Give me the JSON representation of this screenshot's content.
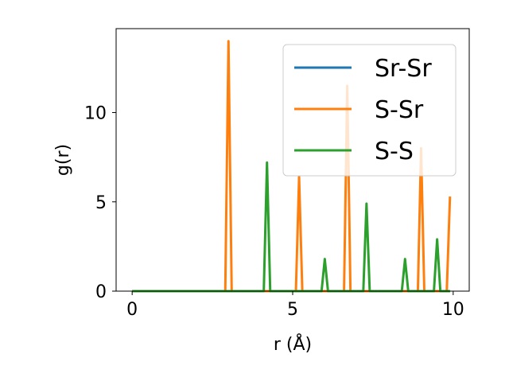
{
  "chart_data": {
    "type": "line",
    "title": "",
    "xlabel": "r (Å)",
    "ylabel": "g(r)",
    "xlim": [
      -0.5,
      10.5
    ],
    "ylim": [
      0,
      14.7
    ],
    "xticks": [
      0,
      5,
      10
    ],
    "yticks": [
      0,
      5,
      10
    ],
    "grid": false,
    "legend_position": "top-right",
    "series": [
      {
        "name": "Sr-Sr",
        "color": "#1f77b4",
        "x": [
          0,
          9.9
        ],
        "y": [
          0,
          0
        ]
      },
      {
        "name": "S-Sr",
        "color": "#ff7f0e",
        "x": [
          0,
          2.9,
          3.0,
          3.1,
          5.1,
          5.2,
          5.3,
          6.6,
          6.7,
          6.8,
          8.9,
          9.0,
          9.1,
          9.8,
          9.9
        ],
        "y": [
          0,
          0,
          14.0,
          0,
          0,
          6.4,
          0,
          0,
          11.5,
          0,
          0,
          8.0,
          0,
          0,
          5.3
        ]
      },
      {
        "name": "S-S",
        "color": "#2ca02c",
        "x": [
          0,
          4.1,
          4.2,
          4.3,
          5.9,
          6.0,
          6.1,
          7.2,
          7.3,
          7.4,
          8.4,
          8.5,
          8.6,
          9.4,
          9.5,
          9.6,
          9.9
        ],
        "y": [
          0,
          0,
          7.2,
          0,
          0,
          1.8,
          0,
          0,
          4.9,
          0,
          0,
          1.8,
          0,
          0,
          2.9,
          0,
          0
        ]
      }
    ]
  }
}
